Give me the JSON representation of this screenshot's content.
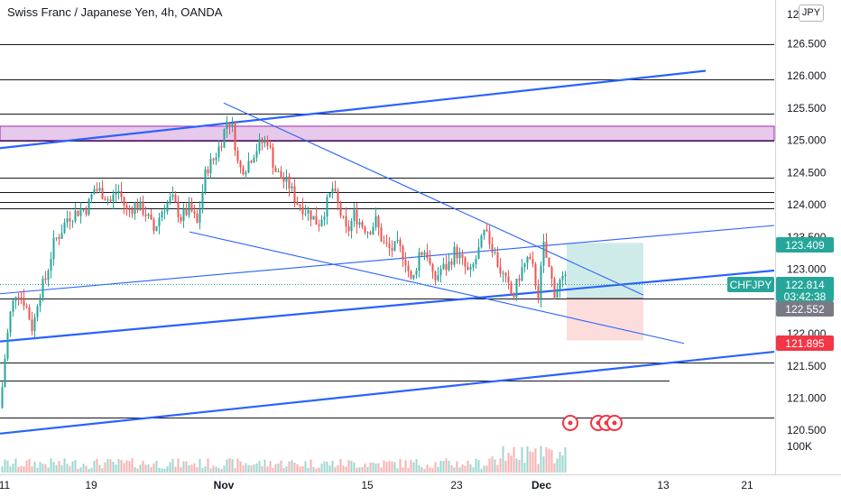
{
  "header": {
    "title": "Swiss Franc / Japanese Yen, 4h, OANDA",
    "currency_badge": "JPY"
  },
  "price_axis": {
    "ticks": [
      "126.500",
      "126.000",
      "125.500",
      "125.000",
      "124.500",
      "124.000",
      "123.500",
      "123.000",
      "122.000",
      "121.500",
      "121.000",
      "120.500"
    ],
    "top_partial": "12",
    "volume_label": "100K"
  },
  "time_axis": {
    "labels": [
      "11",
      "19",
      "Nov",
      "15",
      "23",
      "Dec",
      "13",
      "21"
    ]
  },
  "price_tags": {
    "symbol": "CHFJPY",
    "current_price": "122.814",
    "countdown": "03:42:38",
    "target": "123.409",
    "entry": "122.552",
    "stop": "121.895"
  },
  "colors": {
    "up": "#26a69a",
    "down": "#ef5350",
    "trendline": "#2962ff",
    "zone": "#9c27b0",
    "target_box": "#26a69a",
    "stop_box": "#ef5350"
  },
  "chart_data": {
    "type": "candlestick",
    "symbol": "CHFJPY",
    "timeframe": "4h",
    "source": "OANDA",
    "y_range": [
      120.3,
      127.0
    ],
    "horizontal_levels": [
      126.5,
      125.95,
      125.42,
      125.0,
      124.42,
      124.2,
      124.05,
      123.95,
      122.54,
      121.55,
      121.27,
      120.7
    ],
    "supply_zone": [
      125.0,
      125.22
    ],
    "close_path": [
      [
        0,
        120.85
      ],
      [
        4,
        121.5
      ],
      [
        10,
        122.25
      ],
      [
        18,
        122.7
      ],
      [
        28,
        122.45
      ],
      [
        36,
        122.05
      ],
      [
        42,
        122.6
      ],
      [
        50,
        122.85
      ],
      [
        60,
        123.45
      ],
      [
        66,
        123.55
      ],
      [
        74,
        123.8
      ],
      [
        86,
        123.9
      ],
      [
        96,
        123.95
      ],
      [
        104,
        124.25
      ],
      [
        112,
        124.2
      ],
      [
        122,
        124.05
      ],
      [
        130,
        124.25
      ],
      [
        140,
        123.9
      ],
      [
        150,
        124.0
      ],
      [
        160,
        123.9
      ],
      [
        170,
        123.6
      ],
      [
        180,
        123.95
      ],
      [
        190,
        124.1
      ],
      [
        200,
        123.8
      ],
      [
        210,
        123.95
      ],
      [
        218,
        123.7
      ],
      [
        228,
        124.55
      ],
      [
        236,
        124.7
      ],
      [
        244,
        124.95
      ],
      [
        252,
        125.35
      ],
      [
        258,
        125.15
      ],
      [
        264,
        124.55
      ],
      [
        272,
        124.6
      ],
      [
        280,
        124.8
      ],
      [
        288,
        124.95
      ],
      [
        296,
        125.0
      ],
      [
        304,
        124.55
      ],
      [
        312,
        124.4
      ],
      [
        320,
        124.3
      ],
      [
        328,
        124.05
      ],
      [
        336,
        123.95
      ],
      [
        344,
        123.85
      ],
      [
        352,
        123.7
      ],
      [
        360,
        123.95
      ],
      [
        368,
        124.25
      ],
      [
        376,
        123.9
      ],
      [
        384,
        123.55
      ],
      [
        392,
        123.85
      ],
      [
        400,
        123.7
      ],
      [
        408,
        123.6
      ],
      [
        416,
        123.75
      ],
      [
        424,
        123.4
      ],
      [
        432,
        123.3
      ],
      [
        440,
        123.35
      ],
      [
        448,
        123.2
      ],
      [
        456,
        122.75
      ],
      [
        464,
        123.25
      ],
      [
        472,
        123.3
      ],
      [
        480,
        122.8
      ],
      [
        488,
        123.0
      ],
      [
        496,
        123.05
      ],
      [
        504,
        123.3
      ],
      [
        512,
        123.1
      ],
      [
        520,
        122.9
      ],
      [
        528,
        123.2
      ],
      [
        536,
        123.55
      ],
      [
        544,
        123.4
      ],
      [
        552,
        123.05
      ],
      [
        560,
        122.8
      ],
      [
        568,
        122.55
      ],
      [
        576,
        122.95
      ],
      [
        584,
        123.15
      ],
      [
        590,
        123.0
      ],
      [
        596,
        122.6
      ],
      [
        602,
        123.35
      ],
      [
        608,
        123.0
      ],
      [
        614,
        122.65
      ],
      [
        620,
        122.8
      ],
      [
        626,
        122.81
      ]
    ],
    "volume_note": "volume histogram shown beneath price",
    "trendlines": [
      {
        "from": [
          0,
          124.88
        ],
        "to": [
          782,
          126.08
        ],
        "style": "thick"
      },
      {
        "from": [
          0,
          121.88
        ],
        "to": [
          858,
          122.98
        ],
        "style": "thick"
      },
      {
        "from": [
          0,
          120.45
        ],
        "to": [
          858,
          121.72
        ],
        "style": "thick"
      },
      {
        "from": [
          248,
          125.58
        ],
        "to": [
          713,
          122.6
        ],
        "style": "thin"
      },
      {
        "from": [
          210,
          123.58
        ],
        "to": [
          758,
          121.85
        ],
        "style": "thin"
      },
      {
        "from": [
          0,
          122.62
        ],
        "to": [
          858,
          123.68
        ],
        "style": "thin"
      }
    ],
    "position": {
      "entry": 122.552,
      "target": 123.409,
      "stop": 121.895,
      "x_start": 628,
      "x_end": 713
    }
  }
}
